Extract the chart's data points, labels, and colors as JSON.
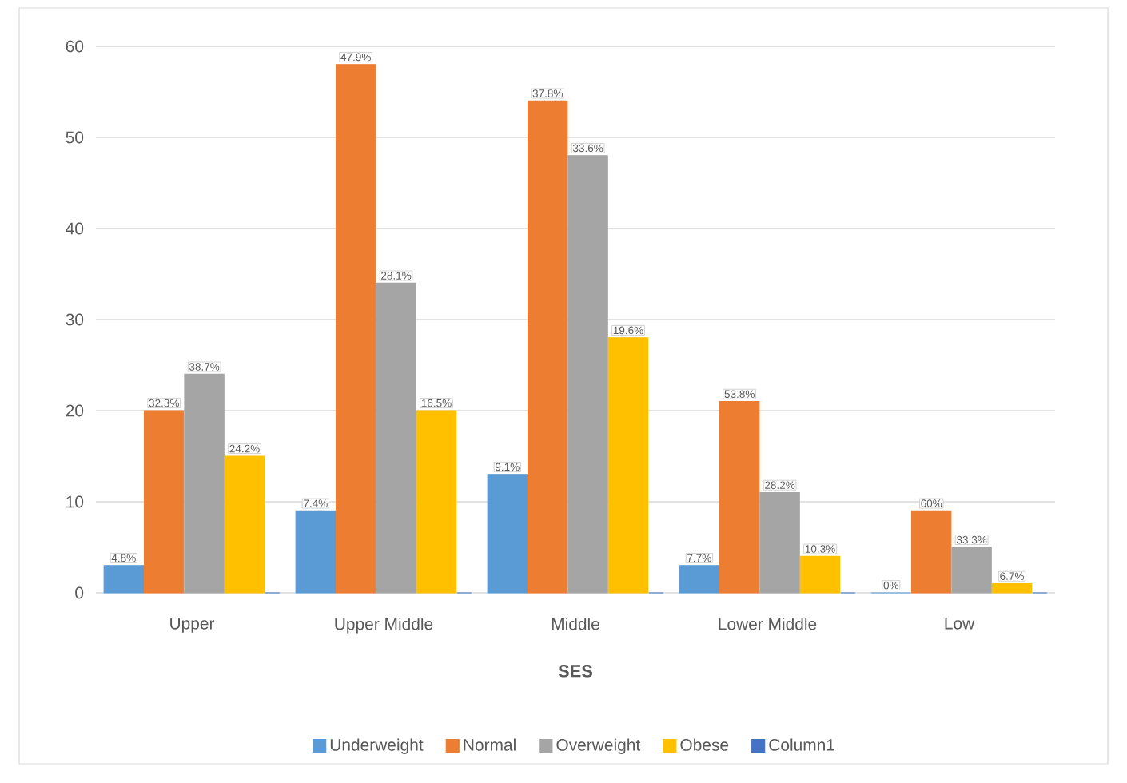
{
  "chart_data": {
    "type": "bar",
    "xlabel": "SES",
    "categories": [
      "Upper",
      "Upper Middle",
      "Middle",
      "Lower Middle",
      "Low"
    ],
    "series": [
      {
        "name": "Underweight",
        "color": "#5b9bd5",
        "values": [
          3,
          9,
          13,
          3,
          0
        ]
      },
      {
        "name": "Normal",
        "color": "#ed7d31",
        "values": [
          20,
          58,
          54,
          21,
          9
        ]
      },
      {
        "name": "Overweight",
        "color": "#a5a5a5",
        "values": [
          24,
          34,
          48,
          11,
          5
        ]
      },
      {
        "name": "Obese",
        "color": "#ffc000",
        "values": [
          15,
          20,
          28,
          4,
          1
        ]
      },
      {
        "name": "Column1",
        "color": "#4472c4",
        "values": [
          0,
          0,
          0,
          0,
          0
        ]
      }
    ],
    "annotations": [
      "4.8%",
      "32.3%",
      "38.7%",
      "24.2%",
      "7.4%",
      "47.9%",
      "28.1%",
      "16.5%",
      "9.1%",
      "37.8%",
      "33.6%",
      "19.6%",
      "7.7%",
      "53.8%",
      "28.2%",
      "10.3%",
      "0%",
      "60%",
      "33.3%",
      "6.7%"
    ],
    "ylim": [
      0,
      60
    ],
    "yticks": [
      0,
      10,
      20,
      30,
      40,
      50,
      60
    ],
    "grid": "y",
    "legend": "bottom"
  }
}
